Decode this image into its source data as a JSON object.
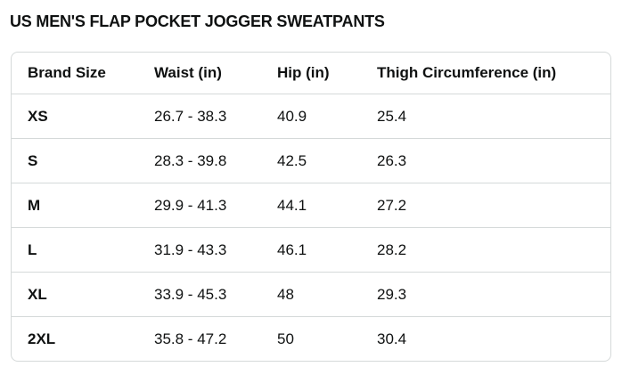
{
  "page": {
    "title": "US MEN'S FLAP POCKET JOGGER SWEATPANTS"
  },
  "size_chart": {
    "columns": [
      "Brand Size",
      "Waist (in)",
      "Hip (in)",
      "Thigh Circumference (in)"
    ],
    "rows": [
      {
        "brand_size": "XS",
        "waist": "26.7 - 38.3",
        "hip": "40.9",
        "thigh": "25.4"
      },
      {
        "brand_size": "S",
        "waist": "28.3 - 39.8",
        "hip": "42.5",
        "thigh": "26.3"
      },
      {
        "brand_size": "M",
        "waist": "29.9 - 41.3",
        "hip": "44.1",
        "thigh": "27.2"
      },
      {
        "brand_size": "L",
        "waist": "31.9 - 43.3",
        "hip": "46.1",
        "thigh": "28.2"
      },
      {
        "brand_size": "XL",
        "waist": "33.9 - 45.3",
        "hip": "48",
        "thigh": "29.3"
      },
      {
        "brand_size": "2XL",
        "waist": "35.8 - 47.2",
        "hip": "50",
        "thigh": "30.4"
      }
    ],
    "colors": {
      "text": "#0F1111",
      "border": "#D5D9D9",
      "background": "#FFFFFF"
    }
  }
}
